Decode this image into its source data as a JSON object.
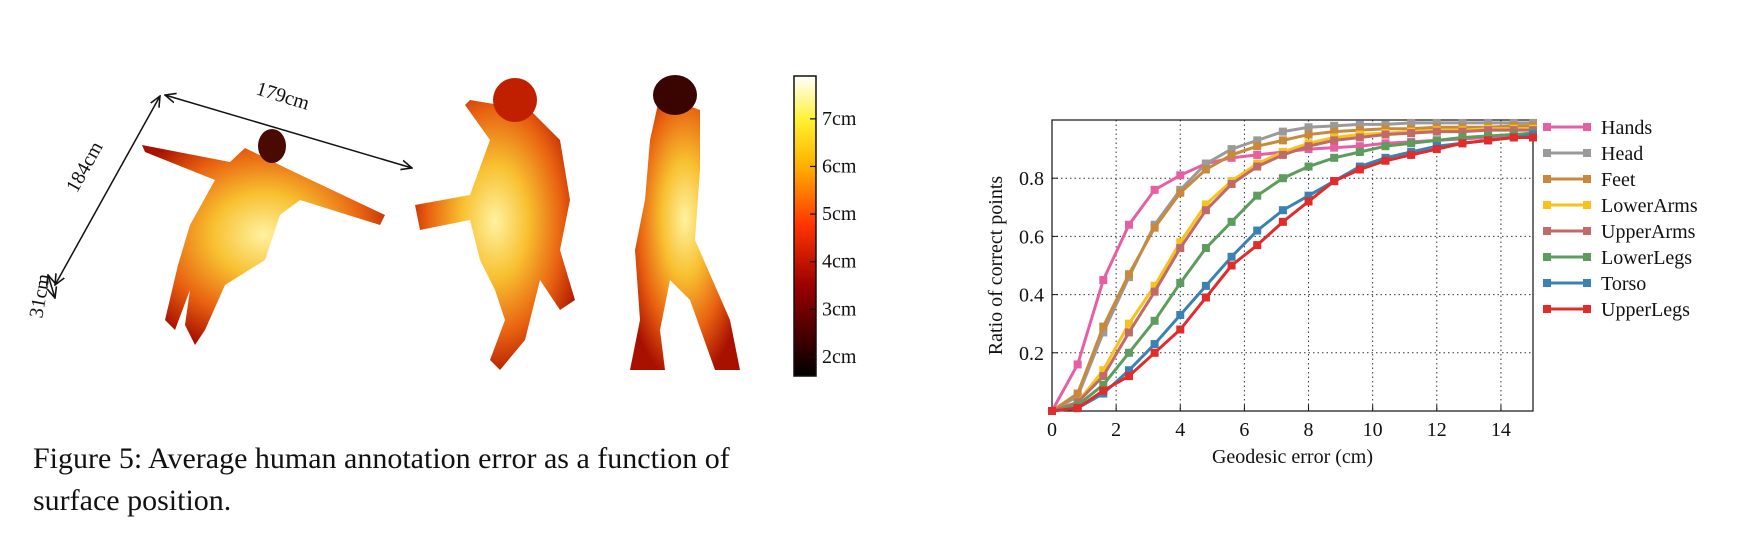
{
  "chart_data": {
    "type": "line",
    "x_label": "Geodesic error (cm)",
    "y_label": "Ratio of correct points",
    "x": [
      0,
      0.8,
      1.6,
      2.4,
      3.2,
      4.0,
      4.8,
      5.6,
      6.4,
      7.2,
      8.0,
      8.8,
      9.6,
      10.4,
      11.2,
      12.0,
      12.8,
      13.6,
      14.4,
      15
    ],
    "series": [
      {
        "name": "Hands",
        "color": "#e75fa3",
        "values": [
          0,
          0.16,
          0.45,
          0.64,
          0.76,
          0.81,
          0.85,
          0.87,
          0.88,
          0.89,
          0.9,
          0.905,
          0.91,
          0.92,
          0.925,
          0.93,
          0.935,
          0.94,
          0.945,
          0.95
        ]
      },
      {
        "name": "Head",
        "color": "#9a9a9a",
        "values": [
          0,
          0.05,
          0.27,
          0.46,
          0.64,
          0.76,
          0.85,
          0.9,
          0.93,
          0.96,
          0.975,
          0.98,
          0.985,
          0.985,
          0.99,
          0.99,
          0.99,
          0.99,
          0.99,
          0.99
        ]
      },
      {
        "name": "Feet",
        "color": "#c8893c",
        "values": [
          0,
          0.06,
          0.29,
          0.47,
          0.63,
          0.75,
          0.83,
          0.88,
          0.91,
          0.93,
          0.95,
          0.96,
          0.965,
          0.97,
          0.97,
          0.975,
          0.975,
          0.975,
          0.98,
          0.98
        ]
      },
      {
        "name": "LowerArms",
        "color": "#f7c21c",
        "values": [
          0,
          0.03,
          0.14,
          0.3,
          0.43,
          0.58,
          0.71,
          0.79,
          0.85,
          0.89,
          0.92,
          0.94,
          0.95,
          0.955,
          0.96,
          0.965,
          0.965,
          0.97,
          0.97,
          0.97
        ]
      },
      {
        "name": "UpperArms",
        "color": "#c06a6a",
        "values": [
          0,
          0.03,
          0.12,
          0.27,
          0.41,
          0.56,
          0.69,
          0.78,
          0.84,
          0.88,
          0.91,
          0.93,
          0.94,
          0.95,
          0.955,
          0.96,
          0.96,
          0.965,
          0.965,
          0.965
        ]
      },
      {
        "name": "LowerLegs",
        "color": "#5c9c5c",
        "values": [
          0,
          0.02,
          0.09,
          0.2,
          0.31,
          0.44,
          0.56,
          0.65,
          0.74,
          0.8,
          0.84,
          0.87,
          0.89,
          0.91,
          0.92,
          0.93,
          0.94,
          0.945,
          0.95,
          0.955
        ]
      },
      {
        "name": "Torso",
        "color": "#3a82b4",
        "values": [
          0,
          0.01,
          0.06,
          0.14,
          0.23,
          0.33,
          0.43,
          0.53,
          0.62,
          0.69,
          0.74,
          0.79,
          0.84,
          0.87,
          0.89,
          0.91,
          0.92,
          0.93,
          0.94,
          0.95
        ]
      },
      {
        "name": "UpperLegs",
        "color": "#e22b2b",
        "values": [
          0,
          0.01,
          0.07,
          0.12,
          0.2,
          0.28,
          0.39,
          0.5,
          0.57,
          0.65,
          0.72,
          0.79,
          0.83,
          0.86,
          0.88,
          0.9,
          0.92,
          0.93,
          0.94,
          0.94
        ]
      }
    ],
    "xlim": [
      0,
      15
    ],
    "xticks": [
      0,
      2,
      4,
      6,
      8,
      10,
      12,
      14
    ],
    "ylim": [
      0,
      1
    ],
    "yticks": [
      0.2,
      0.4,
      0.6,
      0.8
    ],
    "grid": true,
    "legend": "right"
  },
  "figure": {
    "caption": [
      "Figure 5: Average human annotation error as a function of",
      "surface position."
    ],
    "dimensions": [
      "179cm",
      "184cm",
      "31cm"
    ],
    "colorbar": {
      "lim": [
        1.6,
        7.9
      ],
      "ticks": [
        {
          "value": 2,
          "label": "2cm"
        },
        {
          "value": 3,
          "label": "3cm"
        },
        {
          "value": 4,
          "label": "4cm"
        },
        {
          "value": 5,
          "label": "5cm"
        },
        {
          "value": 6,
          "label": "6cm"
        },
        {
          "value": 7,
          "label": "7cm"
        }
      ]
    }
  }
}
